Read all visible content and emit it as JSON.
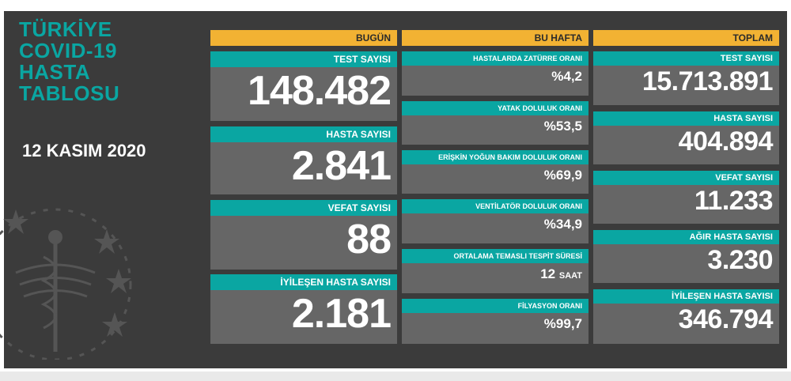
{
  "title_lines": [
    "TÜRKİYE",
    "COVID-19",
    "HASTA",
    "TABLOSU"
  ],
  "date": "12 KASIM 2020",
  "columns": {
    "today": "BUGÜN",
    "week": "BU HAFTA",
    "total": "TOPLAM"
  },
  "today": [
    {
      "label": "TEST SAYISI",
      "value": "148.482"
    },
    {
      "label": "HASTA SAYISI",
      "value": "2.841"
    },
    {
      "label": "VEFAT SAYISI",
      "value": "88"
    },
    {
      "label": "İYİLEŞEN HASTA SAYISI",
      "value": "2.181"
    }
  ],
  "week": [
    {
      "label": "HASTALARDA ZATÜRRE ORANI",
      "value": "%4,2"
    },
    {
      "label": "YATAK DOLULUK ORANI",
      "value": "%53,5"
    },
    {
      "label": "ERİŞKİN YOĞUN BAKIM DOLULUK ORANI",
      "value": "%69,9"
    },
    {
      "label": "VENTİLATÖR DOLULUK ORANI",
      "value": "%34,9"
    },
    {
      "label": "ORTALAMA TEMASLI TESPİT SÜRESİ",
      "value": "12",
      "unit": "SAAT"
    },
    {
      "label": "FİLYASYON ORANI",
      "value": "%99,7"
    }
  ],
  "total": [
    {
      "label": "TEST SAYISI",
      "value": "15.713.891"
    },
    {
      "label": "HASTA SAYISI",
      "value": "404.894"
    },
    {
      "label": "VEFAT SAYISI",
      "value": "11.233"
    },
    {
      "label": "AĞIR HASTA SAYISI",
      "value": "3.230"
    },
    {
      "label": "İYİLEŞEN HASTA SAYISI",
      "value": "346.794"
    }
  ],
  "icons": {
    "emblem": "ministry-of-health-emblem-icon"
  },
  "colors": {
    "accent": "#0aa6a2",
    "header": "#f2b233",
    "board": "#3b3b3b",
    "card": "#666666"
  }
}
